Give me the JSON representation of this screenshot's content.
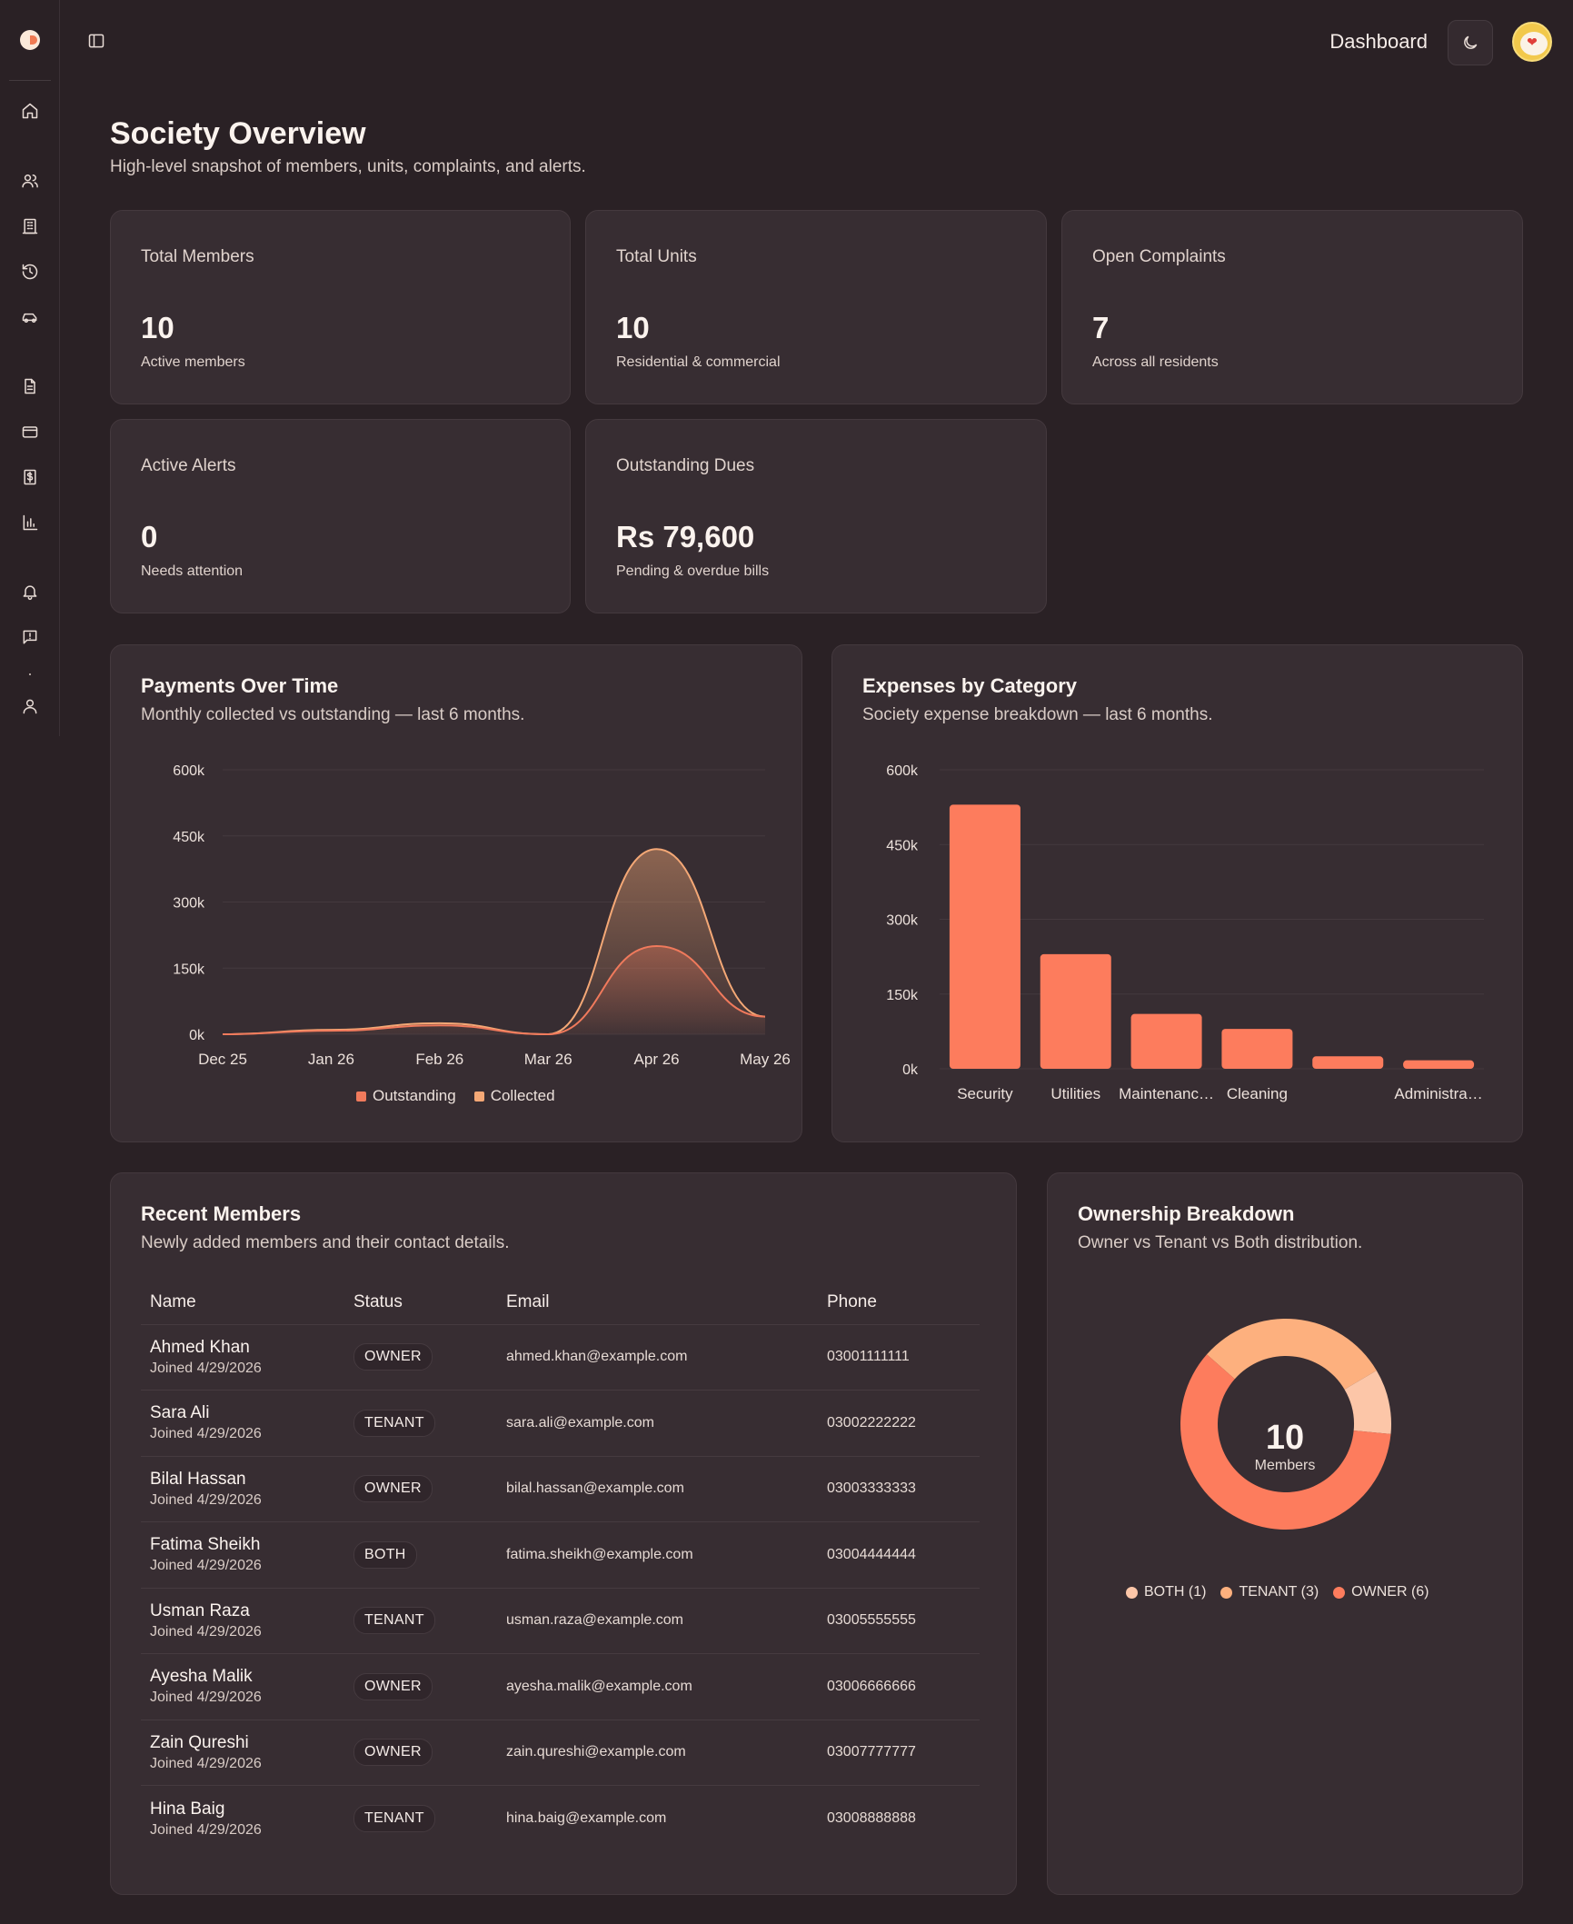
{
  "topbar": {
    "title": "Dashboard",
    "avatar_glyph": "❤"
  },
  "header": {
    "title": "Society Overview",
    "subtitle": "High-level snapshot of members, units, complaints, and alerts."
  },
  "stats": [
    {
      "label": "Total Members",
      "value": "10",
      "sub": "Active members"
    },
    {
      "label": "Total Units",
      "value": "10",
      "sub": "Residential & commercial"
    },
    {
      "label": "Open Complaints",
      "value": "7",
      "sub": "Across all residents"
    },
    {
      "label": "Active Alerts",
      "value": "0",
      "sub": "Needs attention"
    },
    {
      "label": "Outstanding Dues",
      "value": "Rs 79,600",
      "sub": "Pending & overdue bills"
    }
  ],
  "payments": {
    "title": "Payments Over Time",
    "subtitle": "Monthly collected vs outstanding — last 6 months."
  },
  "expenses": {
    "title": "Expenses by Category",
    "subtitle": "Society expense breakdown — last 6 months."
  },
  "members": {
    "title": "Recent Members",
    "subtitle": "Newly added members and their contact details.",
    "columns": [
      "Name",
      "Status",
      "Email",
      "Phone"
    ],
    "rows": [
      {
        "name": "Ahmed Khan",
        "joined": "Joined 4/29/2026",
        "status": "OWNER",
        "email": "ahmed.khan@example.com",
        "phone": "03001111111"
      },
      {
        "name": "Sara Ali",
        "joined": "Joined 4/29/2026",
        "status": "TENANT",
        "email": "sara.ali@example.com",
        "phone": "03002222222"
      },
      {
        "name": "Bilal Hassan",
        "joined": "Joined 4/29/2026",
        "status": "OWNER",
        "email": "bilal.hassan@example.com",
        "phone": "03003333333"
      },
      {
        "name": "Fatima Sheikh",
        "joined": "Joined 4/29/2026",
        "status": "BOTH",
        "email": "fatima.sheikh@example.com",
        "phone": "03004444444"
      },
      {
        "name": "Usman Raza",
        "joined": "Joined 4/29/2026",
        "status": "TENANT",
        "email": "usman.raza@example.com",
        "phone": "03005555555"
      },
      {
        "name": "Ayesha Malik",
        "joined": "Joined 4/29/2026",
        "status": "OWNER",
        "email": "ayesha.malik@example.com",
        "phone": "03006666666"
      },
      {
        "name": "Zain Qureshi",
        "joined": "Joined 4/29/2026",
        "status": "OWNER",
        "email": "zain.qureshi@example.com",
        "phone": "03007777777"
      },
      {
        "name": "Hina Baig",
        "joined": "Joined 4/29/2026",
        "status": "TENANT",
        "email": "hina.baig@example.com",
        "phone": "03008888888"
      }
    ]
  },
  "ownership": {
    "title": "Ownership Breakdown",
    "subtitle": "Owner vs Tenant vs Both distribution.",
    "center_value": "10",
    "center_label": "Members"
  },
  "sidebar": {
    "icons": [
      "home-icon",
      "users-icon",
      "building-icon",
      "history-icon",
      "car-icon",
      "document-icon",
      "credit-card-icon",
      "receipt-icon",
      "bar-chart-icon",
      "bell-icon",
      "message-icon",
      "user-icon"
    ]
  },
  "chart_data": [
    {
      "type": "area",
      "title": "Payments Over Time",
      "x": [
        "Dec 25",
        "Jan 26",
        "Feb 26",
        "Mar 26",
        "Apr 26",
        "May 26"
      ],
      "ylim": [
        0,
        600000
      ],
      "yticks": [
        "0k",
        "150k",
        "300k",
        "450k",
        "600k"
      ],
      "series": [
        {
          "name": "Outstanding",
          "color": "#f07a5c",
          "values": [
            0,
            8000,
            20000,
            0,
            200000,
            40000
          ]
        },
        {
          "name": "Collected",
          "color": "#f4a876",
          "values": [
            0,
            10000,
            25000,
            0,
            420000,
            40000
          ]
        }
      ],
      "legend": "bottom",
      "grid": true
    },
    {
      "type": "bar",
      "title": "Expenses by Category",
      "categories": [
        "Security",
        "Utilities",
        "Maintenanc…",
        "Cleaning",
        "",
        "Administra…"
      ],
      "values": [
        530000,
        230000,
        110000,
        80000,
        25000,
        17000
      ],
      "color": "#fd7c5d",
      "ylim": [
        0,
        600000
      ],
      "yticks": [
        "0k",
        "150k",
        "300k",
        "450k",
        "600k"
      ],
      "grid": true
    },
    {
      "type": "pie",
      "title": "Ownership Breakdown",
      "labels": [
        "BOTH (1)",
        "TENANT (3)",
        "OWNER (6)"
      ],
      "values": [
        1,
        3,
        6
      ],
      "colors": [
        "#fcc6a8",
        "#fdb07e",
        "#fd7c5d"
      ],
      "legend": "bottom"
    }
  ]
}
